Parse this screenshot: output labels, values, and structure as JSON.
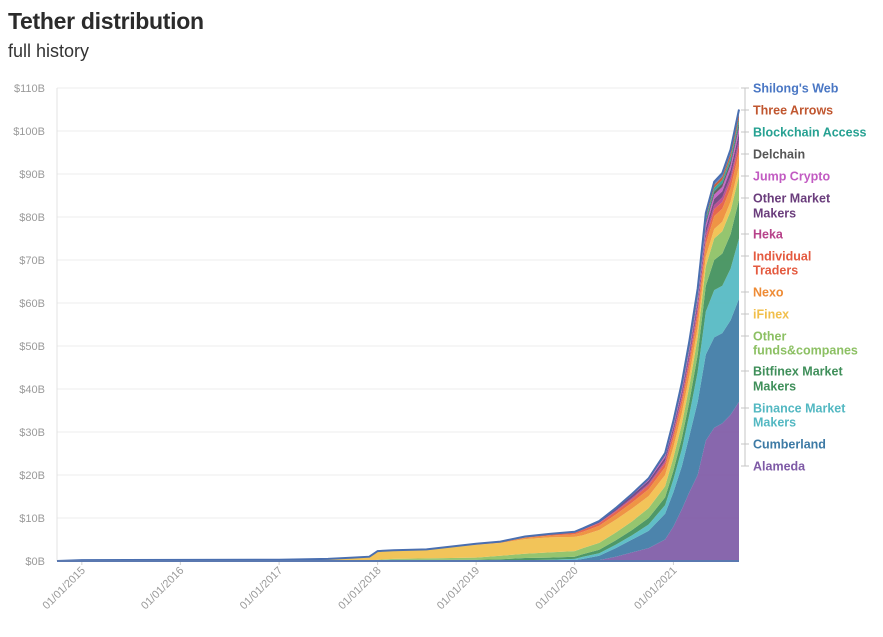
{
  "chart_data": {
    "type": "area",
    "stacked": true,
    "title": "Tether distribution",
    "subtitle": "full history",
    "xlabel": "",
    "ylabel": "",
    "ylim": [
      0,
      110
    ],
    "y_unit": "billions USD",
    "y_ticks": [
      "$0B",
      "$10B",
      "$20B",
      "$30B",
      "$40B",
      "$50B",
      "$60B",
      "$70B",
      "$80B",
      "$90B",
      "$100B",
      "$110B"
    ],
    "x_ticks": [
      "01/01/2015",
      "01/01/2016",
      "01/01/2017",
      "01/01/2018",
      "01/01/2019",
      "01/01/2020",
      "01/01/2021"
    ],
    "x": [
      "2014-10-01",
      "2015-01-01",
      "2017-01-01",
      "2017-07-01",
      "2017-10-01",
      "2017-12-01",
      "2018-01-01",
      "2018-03-01",
      "2018-07-01",
      "2019-01-01",
      "2019-04-01",
      "2019-07-01",
      "2019-10-01",
      "2020-01-01",
      "2020-02-01",
      "2020-04-01",
      "2020-06-01",
      "2020-08-01",
      "2020-10-01",
      "2020-12-01",
      "2021-01-01",
      "2021-02-01",
      "2021-03-01",
      "2021-04-01",
      "2021-05-01",
      "2021-06-01",
      "2021-07-01",
      "2021-08-01",
      "2021-09-01"
    ],
    "series": [
      {
        "name": "Alameda",
        "color": "#7e5aa6",
        "values": [
          0,
          0,
          0,
          0,
          0,
          0,
          0,
          0,
          0,
          0,
          0,
          0,
          0,
          0,
          0,
          0.2,
          1,
          2,
          3,
          5,
          8,
          12,
          16,
          20,
          28,
          31,
          32,
          34,
          37
        ]
      },
      {
        "name": "Cumberland",
        "color": "#3d7aa5",
        "values": [
          0,
          0,
          0,
          0,
          0,
          0,
          0,
          0,
          0,
          0,
          0,
          0.1,
          0.1,
          0.2,
          0.5,
          1,
          2,
          3,
          4,
          6,
          8,
          10,
          13,
          17,
          20,
          21,
          21,
          22,
          24
        ]
      },
      {
        "name": "Binance Market Makers",
        "color": "#53b8c2",
        "values": [
          0,
          0,
          0,
          0,
          0,
          0,
          0,
          0,
          0,
          0,
          0,
          0.1,
          0.2,
          0.3,
          0.5,
          0.6,
          0.8,
          1,
          1.5,
          2,
          3,
          4,
          5,
          7,
          10,
          11,
          11,
          12,
          14
        ]
      },
      {
        "name": "Bitfinex Market Makers",
        "color": "#3f8f5a",
        "values": [
          0,
          0,
          0,
          0,
          0,
          0,
          0.2,
          0.3,
          0.3,
          0.3,
          0.4,
          0.5,
          0.5,
          0.5,
          0.6,
          0.8,
          1,
          1.2,
          1.5,
          1.8,
          2,
          2.5,
          3,
          4,
          6,
          7,
          7.5,
          8,
          9
        ]
      },
      {
        "name": "Other funds&companes",
        "color": "#8cc063",
        "values": [
          0,
          0,
          0,
          0,
          0,
          0,
          0.1,
          0.2,
          0.3,
          0.5,
          0.8,
          1,
          1.2,
          1.3,
          1.4,
          1.6,
          1.8,
          2,
          2.3,
          2.6,
          3,
          3.3,
          3.6,
          4,
          4.5,
          5,
          5.2,
          5.4,
          5.6
        ]
      },
      {
        "name": "iFinex",
        "color": "#f1bf4b",
        "values": [
          0,
          0.2,
          0.3,
          0.5,
          0.8,
          1,
          2,
          2,
          2,
          3,
          3,
          3.4,
          3.5,
          3.3,
          3,
          3,
          3,
          3,
          2.8,
          2.6,
          2.5,
          2.5,
          2.4,
          2.3,
          2.3,
          2.2,
          2.2,
          2.2,
          2.2
        ]
      },
      {
        "name": "Nexo",
        "color": "#ee8b35",
        "values": [
          0,
          0,
          0,
          0,
          0,
          0,
          0,
          0,
          0.1,
          0.1,
          0.2,
          0.3,
          0.4,
          0.6,
          0.8,
          1,
          1.2,
          1.4,
          1.6,
          1.8,
          2,
          2.2,
          2.4,
          2.6,
          2.8,
          3,
          3,
          3.1,
          3.2
        ]
      },
      {
        "name": "Individual Traders",
        "color": "#e45a3f",
        "values": [
          0,
          0,
          0,
          0,
          0,
          0,
          0,
          0,
          0,
          0.1,
          0.1,
          0.2,
          0.3,
          0.4,
          0.5,
          0.6,
          0.7,
          0.8,
          0.9,
          1,
          1.1,
          1.2,
          1.3,
          1.4,
          1.5,
          1.6,
          1.6,
          1.7,
          1.8
        ]
      },
      {
        "name": "Heka",
        "color": "#b7428a",
        "values": [
          0,
          0,
          0,
          0,
          0,
          0,
          0,
          0,
          0,
          0,
          0,
          0,
          0,
          0,
          0,
          0.1,
          0.2,
          0.3,
          0.4,
          0.5,
          0.6,
          0.7,
          0.8,
          0.9,
          1,
          1,
          1.1,
          1.1,
          1.2
        ]
      },
      {
        "name": "Other Market Makers",
        "color": "#6a3d7c",
        "values": [
          0,
          0,
          0,
          0,
          0,
          0,
          0,
          0,
          0,
          0,
          0,
          0.1,
          0.1,
          0.2,
          0.3,
          0.4,
          0.5,
          0.6,
          0.7,
          0.8,
          0.9,
          1,
          1.1,
          1.2,
          1.3,
          1.4,
          1.4,
          1.5,
          1.6
        ]
      },
      {
        "name": "Jump Crypto",
        "color": "#c25bc2",
        "values": [
          0,
          0,
          0,
          0,
          0,
          0,
          0,
          0,
          0,
          0,
          0,
          0,
          0,
          0,
          0,
          0,
          0.1,
          0.2,
          0.3,
          0.4,
          0.5,
          0.6,
          0.7,
          0.8,
          0.9,
          1,
          1,
          1.1,
          1.2
        ]
      },
      {
        "name": "Delchain",
        "color": "#555555",
        "values": [
          0,
          0,
          0,
          0,
          0,
          0,
          0,
          0,
          0,
          0,
          0,
          0,
          0,
          0,
          0,
          0,
          0,
          0.1,
          0.1,
          0.2,
          0.3,
          0.4,
          0.5,
          0.6,
          0.7,
          0.8,
          0.8,
          0.9,
          1.0
        ]
      },
      {
        "name": "Blockchain Access",
        "color": "#26a192",
        "values": [
          0,
          0,
          0,
          0,
          0,
          0,
          0,
          0,
          0,
          0,
          0,
          0,
          0,
          0,
          0,
          0,
          0,
          0,
          0.1,
          0.2,
          0.3,
          0.4,
          0.5,
          0.6,
          0.7,
          0.8,
          0.8,
          0.9,
          1.0
        ]
      },
      {
        "name": "Three Arrows",
        "color": "#c0562f",
        "values": [
          0,
          0,
          0,
          0,
          0,
          0,
          0,
          0,
          0,
          0,
          0,
          0,
          0,
          0,
          0,
          0,
          0,
          0,
          0,
          0.1,
          0.2,
          0.3,
          0.4,
          0.5,
          0.6,
          0.7,
          0.8,
          0.9,
          1.0
        ]
      },
      {
        "name": "Shilong's Web",
        "color": "#4a77c4",
        "values": [
          0,
          0,
          0,
          0,
          0,
          0,
          0,
          0,
          0,
          0,
          0,
          0,
          0,
          0,
          0,
          0,
          0,
          0,
          0,
          0.1,
          0.2,
          0.3,
          0.4,
          0.5,
          0.6,
          0.7,
          0.8,
          0.9,
          1.2
        ]
      }
    ],
    "legend_order_top_to_bottom": [
      "Shilong's Web",
      "Three Arrows",
      "Blockchain Access",
      "Delchain",
      "Jump Crypto",
      "Other Market Makers",
      "Heka",
      "Individual Traders",
      "Nexo",
      "iFinex",
      "Other funds&companes",
      "Bitfinex Market Makers",
      "Binance Market Makers",
      "Cumberland",
      "Alameda"
    ],
    "legend_placement": "right",
    "grid": true
  }
}
